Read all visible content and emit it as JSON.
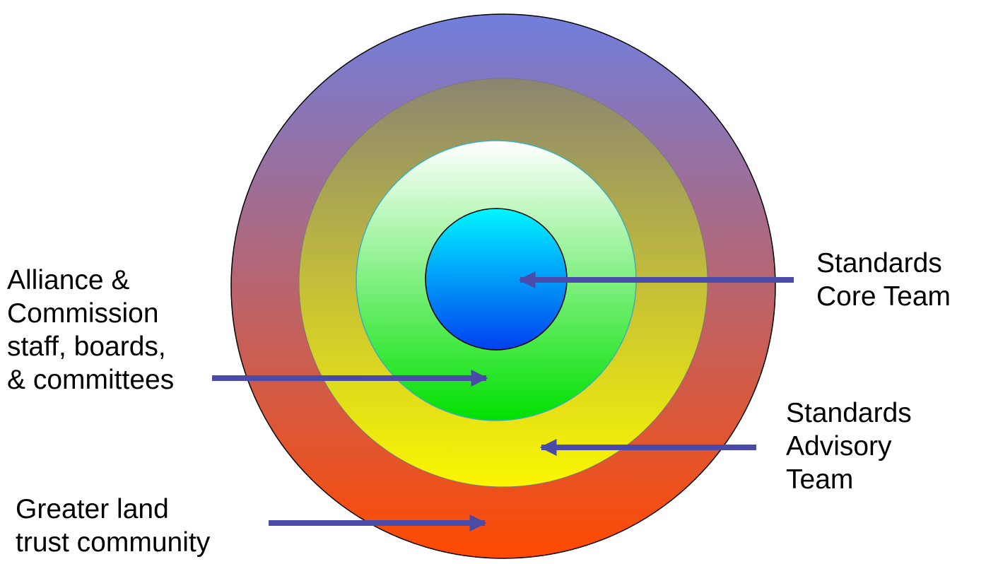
{
  "diagram": {
    "rings": [
      {
        "name": "Greater land trust community",
        "gradient_top": "#717fdd",
        "gradient_bottom": "#ff4a00"
      },
      {
        "name": "Standards Advisory Team",
        "gradient_top": "#8b8571",
        "gradient_bottom": "#fbf700"
      },
      {
        "name": "Alliance & Commission staff, boards, & committees",
        "gradient_top": "#ffffff",
        "gradient_bottom": "#00e000"
      },
      {
        "name": "Standards Core Team",
        "gradient_top": "#00f6ff",
        "gradient_bottom": "#0040f0"
      }
    ],
    "arrow_color": "#4a4aa8",
    "labels": {
      "alliance": "Alliance &\nCommission\nstaff, boards,\n& committees",
      "core": "Standards\nCore Team",
      "advisory": "Standards\nAdvisory\nTeam",
      "greater": "Greater land\ntrust community"
    }
  }
}
